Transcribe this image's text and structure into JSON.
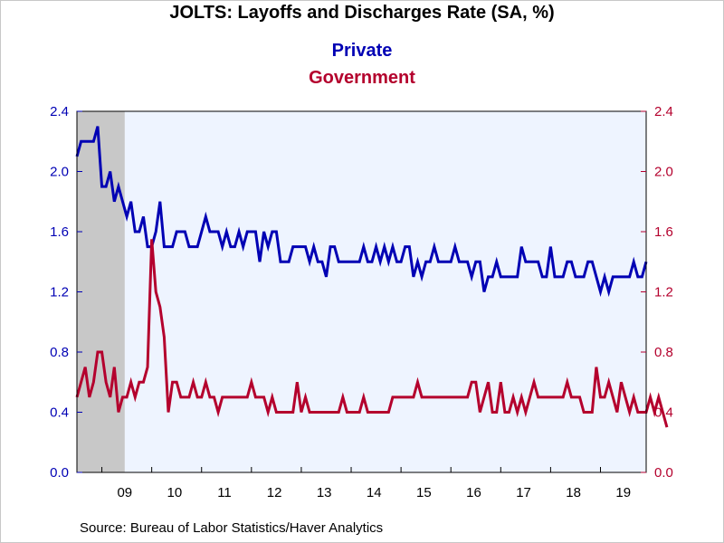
{
  "chart_data": {
    "type": "line",
    "title": "JOLTS: Layoffs and Discharges Rate (SA, %)",
    "source": "Source:  Bureau of Labor Statistics/Haver Analytics",
    "x_start": "2008-07",
    "x_tick_labels": [
      "09",
      "10",
      "11",
      "12",
      "13",
      "14",
      "15",
      "16",
      "17",
      "18",
      "19"
    ],
    "y_left": {
      "ticks": [
        "0.0",
        "0.4",
        "0.8",
        "1.2",
        "1.6",
        "2.0",
        "2.4"
      ],
      "ylim": [
        0,
        2.4
      ]
    },
    "y_right": {
      "ticks": [
        "0.0",
        "0.4",
        "0.8",
        "1.2",
        "1.6",
        "2.0",
        "2.4"
      ],
      "ylim": [
        0,
        2.4
      ]
    },
    "recession_shading": {
      "start": "2008-07",
      "end": "2009-06"
    },
    "grid": false,
    "series": [
      {
        "name": "Private",
        "color": "#0000b4",
        "axis": "left",
        "values": [
          2.1,
          2.2,
          2.2,
          2.2,
          2.2,
          2.3,
          1.9,
          1.9,
          2.0,
          1.8,
          1.9,
          1.8,
          1.7,
          1.8,
          1.6,
          1.6,
          1.7,
          1.5,
          1.5,
          1.6,
          1.8,
          1.5,
          1.5,
          1.5,
          1.6,
          1.6,
          1.6,
          1.5,
          1.5,
          1.5,
          1.6,
          1.7,
          1.6,
          1.6,
          1.6,
          1.5,
          1.6,
          1.5,
          1.5,
          1.6,
          1.5,
          1.6,
          1.6,
          1.6,
          1.4,
          1.6,
          1.5,
          1.6,
          1.6,
          1.4,
          1.4,
          1.4,
          1.5,
          1.5,
          1.5,
          1.5,
          1.4,
          1.5,
          1.4,
          1.4,
          1.3,
          1.5,
          1.5,
          1.4,
          1.4,
          1.4,
          1.4,
          1.4,
          1.4,
          1.5,
          1.4,
          1.4,
          1.5,
          1.4,
          1.5,
          1.4,
          1.5,
          1.4,
          1.4,
          1.5,
          1.5,
          1.3,
          1.4,
          1.3,
          1.4,
          1.4,
          1.5,
          1.4,
          1.4,
          1.4,
          1.4,
          1.5,
          1.4,
          1.4,
          1.4,
          1.3,
          1.4,
          1.4,
          1.2,
          1.3,
          1.3,
          1.4,
          1.3,
          1.3,
          1.3,
          1.3,
          1.3,
          1.5,
          1.4,
          1.4,
          1.4,
          1.4,
          1.3,
          1.3,
          1.5,
          1.3,
          1.3,
          1.3,
          1.4,
          1.4,
          1.3,
          1.3,
          1.3,
          1.4,
          1.4,
          1.3,
          1.2,
          1.3,
          1.2,
          1.3,
          1.3,
          1.3,
          1.3,
          1.3,
          1.4,
          1.3,
          1.3,
          1.4
        ]
      },
      {
        "name": "Government",
        "color": "#b4002d",
        "axis": "right",
        "values": [
          0.5,
          0.6,
          0.7,
          0.5,
          0.6,
          0.8,
          0.8,
          0.6,
          0.5,
          0.7,
          0.4,
          0.5,
          0.5,
          0.6,
          0.5,
          0.6,
          0.6,
          0.7,
          1.55,
          1.2,
          1.1,
          0.9,
          0.4,
          0.6,
          0.6,
          0.5,
          0.5,
          0.5,
          0.6,
          0.5,
          0.5,
          0.6,
          0.5,
          0.5,
          0.4,
          0.5,
          0.5,
          0.5,
          0.5,
          0.5,
          0.5,
          0.5,
          0.6,
          0.5,
          0.5,
          0.5,
          0.4,
          0.5,
          0.4,
          0.4,
          0.4,
          0.4,
          0.4,
          0.6,
          0.4,
          0.5,
          0.4,
          0.4,
          0.4,
          0.4,
          0.4,
          0.4,
          0.4,
          0.4,
          0.5,
          0.4,
          0.4,
          0.4,
          0.4,
          0.5,
          0.4,
          0.4,
          0.4,
          0.4,
          0.4,
          0.4,
          0.5,
          0.5,
          0.5,
          0.5,
          0.5,
          0.5,
          0.6,
          0.5,
          0.5,
          0.5,
          0.5,
          0.5,
          0.5,
          0.5,
          0.5,
          0.5,
          0.5,
          0.5,
          0.5,
          0.6,
          0.6,
          0.4,
          0.5,
          0.6,
          0.4,
          0.4,
          0.6,
          0.4,
          0.4,
          0.5,
          0.4,
          0.5,
          0.4,
          0.5,
          0.6,
          0.5,
          0.5,
          0.5,
          0.5,
          0.5,
          0.5,
          0.5,
          0.6,
          0.5,
          0.5,
          0.5,
          0.4,
          0.4,
          0.4,
          0.7,
          0.5,
          0.5,
          0.6,
          0.5,
          0.4,
          0.6,
          0.5,
          0.4,
          0.5,
          0.4,
          0.4,
          0.4,
          0.5,
          0.4,
          0.5,
          0.4,
          0.3
        ]
      }
    ]
  }
}
